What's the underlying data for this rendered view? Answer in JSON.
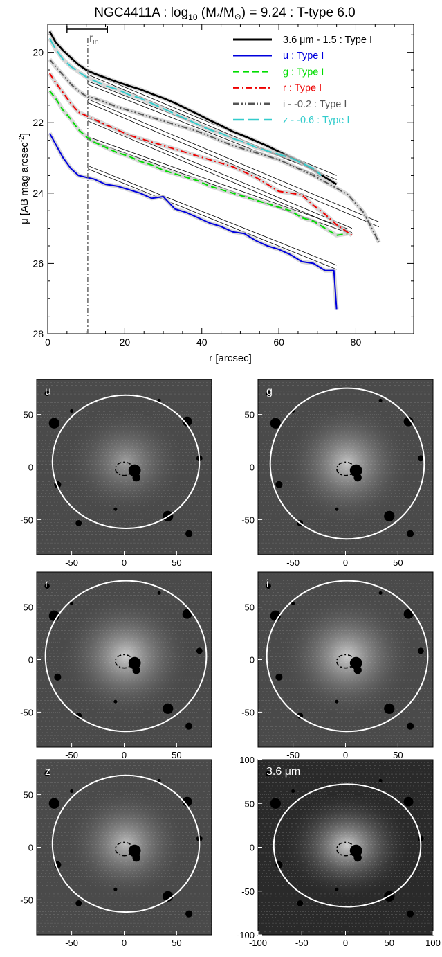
{
  "chart_data": [
    {
      "type": "line",
      "title_parts": {
        "name": "NGC4411A : log",
        "sub10": "10",
        "mid": " (M",
        "star": "*",
        "slash": "/M",
        "sun": "⊙",
        "tail": ") = 9.24 : T-type 6.0"
      },
      "xlabel": "r [arcsec]",
      "ylabel_main": "μ [AB mag arcsec",
      "ylabel_exp": "-2",
      "ylabel_close": "]",
      "xlim": [
        0,
        95
      ],
      "ylim": [
        28,
        19.2
      ],
      "x_ticks": [
        0,
        20,
        40,
        60,
        80
      ],
      "y_ticks": [
        20,
        22,
        24,
        26,
        28
      ],
      "r_in": 10.4,
      "r_in_label": "r",
      "r_in_sub": "in",
      "r_in_bar": [
        5,
        15.5
      ],
      "legend_position": "top-right",
      "series": [
        {
          "name": "3.6 μm - 1.5 : Type I",
          "color": "#000000",
          "dash": "solid",
          "x": [
            0.5,
            2,
            4,
            6,
            8,
            10,
            12,
            15,
            18,
            21,
            24,
            27,
            30,
            33,
            36,
            39,
            42,
            45,
            48,
            51,
            54,
            57,
            60,
            63,
            66,
            69,
            72,
            75
          ],
          "y": [
            19.4,
            19.7,
            19.95,
            20.15,
            20.35,
            20.5,
            20.6,
            20.72,
            20.84,
            20.95,
            21.05,
            21.18,
            21.3,
            21.44,
            21.6,
            21.76,
            21.93,
            22.08,
            22.25,
            22.38,
            22.52,
            22.66,
            22.82,
            22.98,
            23.14,
            23.34,
            23.55,
            23.75
          ],
          "fit_x": [
            10.4,
            75
          ],
          "fit_y": [
            [
              20.55,
              23.5
            ],
            [
              20.63,
              23.62
            ]
          ]
        },
        {
          "name": "u : Type I",
          "color": "#0000dd",
          "dash": "solid",
          "x": [
            0.5,
            2,
            4,
            6,
            8,
            10,
            12,
            15,
            18,
            21,
            24,
            27,
            30,
            33,
            36,
            39,
            42,
            45,
            48,
            51,
            54,
            57,
            60,
            63,
            66,
            69,
            72,
            74.3,
            75
          ],
          "y": [
            22.3,
            22.6,
            23.0,
            23.3,
            23.5,
            23.55,
            23.6,
            23.75,
            23.8,
            23.9,
            24.0,
            24.15,
            24.1,
            24.45,
            24.55,
            24.7,
            24.85,
            24.95,
            25.1,
            25.15,
            25.35,
            25.5,
            25.6,
            25.75,
            25.95,
            26.0,
            26.2,
            26.2,
            27.3
          ],
          "fit_x": [
            10.4,
            75
          ],
          "fit_y": [
            [
              23.22,
              26.05
            ],
            [
              23.31,
              26.17
            ]
          ]
        },
        {
          "name": "g : Type I",
          "color": "#00dd00",
          "dash": "dash",
          "x": [
            0.5,
            2,
            4,
            6,
            8,
            10,
            12,
            15,
            18,
            21,
            24,
            27,
            30,
            33,
            36,
            39,
            42,
            45,
            48,
            51,
            54,
            57,
            60,
            63,
            66,
            69,
            72,
            75,
            78
          ],
          "y": [
            21.1,
            21.3,
            21.65,
            21.9,
            22.2,
            22.4,
            22.55,
            22.7,
            22.85,
            22.95,
            23.1,
            23.2,
            23.35,
            23.45,
            23.55,
            23.65,
            23.8,
            23.9,
            24.0,
            24.1,
            24.2,
            24.3,
            24.4,
            24.5,
            24.7,
            24.8,
            25.0,
            25.2,
            25.15
          ],
          "fit_x": [
            10.4,
            78
          ],
          "fit_y": [
            [
              22.4,
              25.02
            ],
            [
              22.48,
              25.13
            ]
          ]
        },
        {
          "name": "r : Type I",
          "color": "#ee0000",
          "dash": "dashdot",
          "x": [
            0.5,
            2,
            4,
            6,
            8,
            10,
            12,
            15,
            18,
            21,
            24,
            27,
            30,
            33,
            36,
            39,
            42,
            45,
            48,
            51,
            54,
            57,
            60,
            63,
            66,
            69,
            72,
            75,
            79
          ],
          "y": [
            20.6,
            20.85,
            21.15,
            21.45,
            21.7,
            21.8,
            21.9,
            22.05,
            22.2,
            22.35,
            22.45,
            22.55,
            22.65,
            22.75,
            22.85,
            22.95,
            23.05,
            23.15,
            23.25,
            23.4,
            23.55,
            23.75,
            23.95,
            24.0,
            24.05,
            24.35,
            24.6,
            24.9,
            25.2
          ],
          "fit_x": [
            10.4,
            79
          ],
          "fit_y": [
            [
              21.86,
              25.0
            ],
            [
              21.95,
              25.12
            ]
          ]
        },
        {
          "name": "i - -0.2 : Type I",
          "color": "#555555",
          "dash": "dashdotdot",
          "x": [
            0.5,
            2,
            4,
            6,
            8,
            10,
            12,
            15,
            18,
            21,
            24,
            27,
            30,
            33,
            36,
            39,
            42,
            45,
            48,
            51,
            54,
            57,
            60,
            63,
            66,
            69,
            72,
            75,
            78,
            82,
            86
          ],
          "y": [
            20.2,
            20.4,
            20.65,
            20.9,
            21.1,
            21.25,
            21.3,
            21.42,
            21.55,
            21.65,
            21.75,
            21.85,
            21.95,
            22.05,
            22.15,
            22.25,
            22.38,
            22.52,
            22.65,
            22.75,
            22.85,
            22.95,
            23.05,
            23.2,
            23.35,
            23.5,
            23.68,
            23.86,
            24.05,
            24.55,
            25.4
          ],
          "fit_x": [
            10.4,
            86
          ],
          "fit_y": [
            [
              21.33,
              24.82
            ],
            [
              21.43,
              24.96
            ]
          ]
        },
        {
          "name": "z - -0.6 : Type I",
          "color": "#33cccc",
          "dash": "longdash",
          "x": [
            0.5,
            2,
            4,
            6,
            8,
            10,
            12,
            15,
            18,
            21,
            24,
            27,
            30,
            33,
            36,
            39,
            42,
            45,
            48,
            51,
            54,
            57,
            60,
            63,
            66,
            69,
            71
          ],
          "y": [
            19.6,
            19.9,
            20.2,
            20.4,
            20.55,
            20.7,
            20.8,
            20.95,
            21.05,
            21.2,
            21.3,
            21.45,
            21.6,
            21.75,
            21.9,
            22.05,
            22.2,
            22.3,
            22.45,
            22.55,
            22.7,
            22.8,
            22.9,
            23.0,
            23.15,
            23.3,
            23.5
          ],
          "fit_x": [
            10.4,
            71
          ],
          "fit_y": [
            [
              20.82,
              23.42
            ],
            [
              20.91,
              23.54
            ]
          ]
        }
      ]
    },
    {
      "type": "image-grid",
      "panels": [
        {
          "label": "u",
          "x_ticks": [
            "-50",
            "0",
            "50"
          ],
          "y_ticks": [
            "50",
            "0",
            "-50"
          ]
        },
        {
          "label": "g",
          "x_ticks": [
            "-50",
            "0",
            "50"
          ],
          "y_ticks": [
            "50",
            "0",
            "-50"
          ]
        },
        {
          "label": "r",
          "x_ticks": [
            "-50",
            "0",
            "50"
          ],
          "y_ticks": [
            "50",
            "0",
            "-50"
          ]
        },
        {
          "label": "i",
          "x_ticks": [
            "-50",
            "0",
            "50"
          ],
          "y_ticks": [
            "50",
            "0",
            "-50"
          ]
        },
        {
          "label": "z",
          "x_ticks": [
            "-50",
            "0",
            "50"
          ],
          "y_ticks": [
            "50",
            "0",
            "-50"
          ]
        },
        {
          "label": "3.6 μm",
          "x_ticks": [
            "-100",
            "-50",
            "0",
            "50",
            "100"
          ],
          "y_ticks": [
            "100",
            "50",
            "0",
            "-50",
            "-100"
          ]
        }
      ]
    }
  ]
}
